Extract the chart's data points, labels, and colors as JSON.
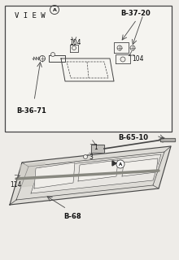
{
  "bg_color": "#eeece8",
  "line_color": "#444444",
  "text_color": "#111111",
  "box_color": "#f5f4f0",
  "labels": {
    "B_37_20": "B-37-20",
    "B_36_71": "B-36-71",
    "B_65_10": "B-65-10",
    "B_68": "B-68",
    "num_104a": "104",
    "num_104b": "104",
    "num_114": "114",
    "num_1": "1",
    "num_3": "3"
  },
  "figsize": [
    2.2,
    3.2
  ],
  "dpi": 100
}
